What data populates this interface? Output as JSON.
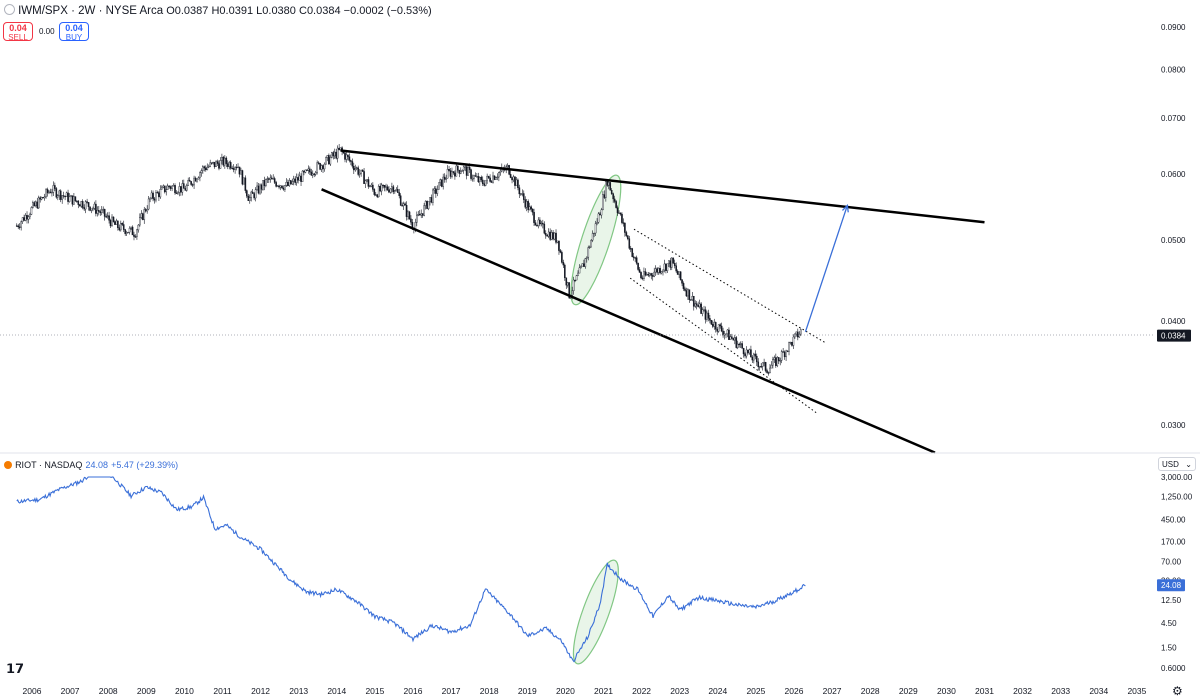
{
  "header": {
    "symbol": "IWM/SPX · 2W · NYSE Arca",
    "open_label": "O",
    "open": "0.0387",
    "high_label": "H",
    "high": "0.0391",
    "low_label": "L",
    "low": "0.0380",
    "close_label": "C",
    "close": "0.0384",
    "change": "−0.0002 (−0.53%)",
    "sell_value": "0.04",
    "sell_label": "SELL",
    "spread": "0.00",
    "buy_value": "0.04",
    "buy_label": "BUY"
  },
  "lower_header": {
    "symbol": "RIOT · NASDAQ",
    "last": "24.08",
    "change": "+5.47 (+29.39%)"
  },
  "currency": "USD",
  "colors": {
    "candle": "#131722",
    "riot_line": "#3a6fd8",
    "highlight_fill": "#c8e6c9",
    "highlight_stroke": "#81c784",
    "projection": "#3a6fd8",
    "trendline": "#000000"
  },
  "chart_data": [
    {
      "type": "candlestick",
      "title": "IWM/SPX · 2W · NYSE Arca",
      "y_scale": "log",
      "y_ticks": [
        "0.0900",
        "0.0800",
        "0.0700",
        "0.0600",
        "0.0500",
        "0.0400",
        "0.0300"
      ],
      "last_price": "0.0384",
      "x": [
        2005.6,
        2006.0,
        2006.5,
        2007.0,
        2007.5,
        2007.8,
        2008.2,
        2008.7,
        2009.1,
        2009.6,
        2010.0,
        2010.5,
        2011.0,
        2011.4,
        2011.7,
        2012.2,
        2012.7,
        2013.2,
        2013.7,
        2014.1,
        2014.5,
        2015.0,
        2015.5,
        2016.0,
        2016.4,
        2016.9,
        2017.3,
        2017.8,
        2018.2,
        2018.5,
        2018.9,
        2019.3,
        2019.8,
        2020.1,
        2020.5,
        2020.9,
        2021.1,
        2021.4,
        2021.7,
        2022.0,
        2022.4,
        2022.8,
        2023.1,
        2023.4,
        2023.8,
        2024.1,
        2024.4,
        2024.8,
        2025.1,
        2025.3,
        2025.6,
        2025.9,
        2026.2
      ],
      "values": [
        0.052,
        0.0545,
        0.0575,
        0.056,
        0.055,
        0.054,
        0.052,
        0.051,
        0.056,
        0.058,
        0.0575,
        0.061,
        0.062,
        0.0615,
        0.056,
        0.059,
        0.058,
        0.06,
        0.062,
        0.064,
        0.061,
        0.057,
        0.058,
        0.052,
        0.0555,
        0.06,
        0.061,
        0.0585,
        0.06,
        0.061,
        0.056,
        0.052,
        0.05,
        0.043,
        0.047,
        0.054,
        0.059,
        0.054,
        0.049,
        0.045,
        0.046,
        0.047,
        0.044,
        0.042,
        0.04,
        0.039,
        0.038,
        0.0365,
        0.0355,
        0.035,
        0.036,
        0.0375,
        0.039
      ],
      "trendlines": [
        {
          "style": "solid",
          "from": [
            2014.1,
            0.064
          ],
          "to": [
            2031.0,
            0.0525
          ]
        },
        {
          "style": "solid",
          "from": [
            2013.6,
            0.0575
          ],
          "to": [
            2029.7,
            0.0278
          ]
        },
        {
          "style": "dotted",
          "from": [
            2021.8,
            0.0515
          ],
          "to": [
            2026.8,
            0.0377
          ]
        },
        {
          "style": "dotted",
          "from": [
            2021.7,
            0.045
          ],
          "to": [
            2026.6,
            0.031
          ]
        }
      ],
      "projection": {
        "from": [
          2026.3,
          0.0388
        ],
        "to": [
          2027.4,
          0.055
        ]
      },
      "highlight": {
        "center": [
          2020.8,
          0.05
        ]
      }
    },
    {
      "type": "line",
      "title": "RIOT · NASDAQ",
      "y_scale": "log",
      "y_ticks": [
        "3,000.00",
        "1,250.00",
        "450.00",
        "170.00",
        "70.00",
        "30.00",
        "12.50",
        "4.50",
        "1.50",
        "0.6000"
      ],
      "last_value": "24.08",
      "x": [
        2005.6,
        2006.2,
        2006.7,
        2007.3,
        2007.8,
        2008.2,
        2008.6,
        2009.0,
        2009.4,
        2009.8,
        2010.2,
        2010.5,
        2010.8,
        2011.1,
        2011.5,
        2012.0,
        2012.4,
        2012.8,
        2013.2,
        2013.6,
        2014.0,
        2014.5,
        2015.0,
        2015.5,
        2016.0,
        2016.5,
        2017.0,
        2017.5,
        2017.9,
        2018.2,
        2018.6,
        2019.0,
        2019.5,
        2019.9,
        2020.2,
        2020.6,
        2020.9,
        2021.1,
        2021.5,
        2021.9,
        2022.3,
        2022.7,
        2023.0,
        2023.5,
        2024.0,
        2024.5,
        2025.0,
        2025.5,
        2026.0,
        2026.3
      ],
      "values": [
        1000,
        1100,
        1700,
        2500,
        5000,
        2600,
        1300,
        1900,
        1500,
        700,
        800,
        1200,
        300,
        350,
        200,
        120,
        60,
        30,
        18,
        16,
        20,
        12,
        6,
        4.5,
        2.2,
        4,
        3,
        4,
        20,
        12,
        6,
        2.5,
        3.5,
        2,
        0.8,
        2.5,
        10,
        60,
        30,
        20,
        6,
        15,
        8,
        14,
        12,
        10,
        9,
        12,
        18,
        24.08
      ]
    }
  ],
  "x_axis_labels": [
    "2006",
    "2007",
    "2008",
    "2009",
    "2010",
    "2011",
    "2012",
    "2013",
    "2014",
    "2015",
    "2016",
    "2017",
    "2018",
    "2019",
    "2020",
    "2021",
    "2022",
    "2023",
    "2024",
    "2025",
    "2026",
    "2027",
    "2028",
    "2029",
    "2030",
    "2031",
    "2032",
    "2033",
    "2034",
    "2035"
  ]
}
